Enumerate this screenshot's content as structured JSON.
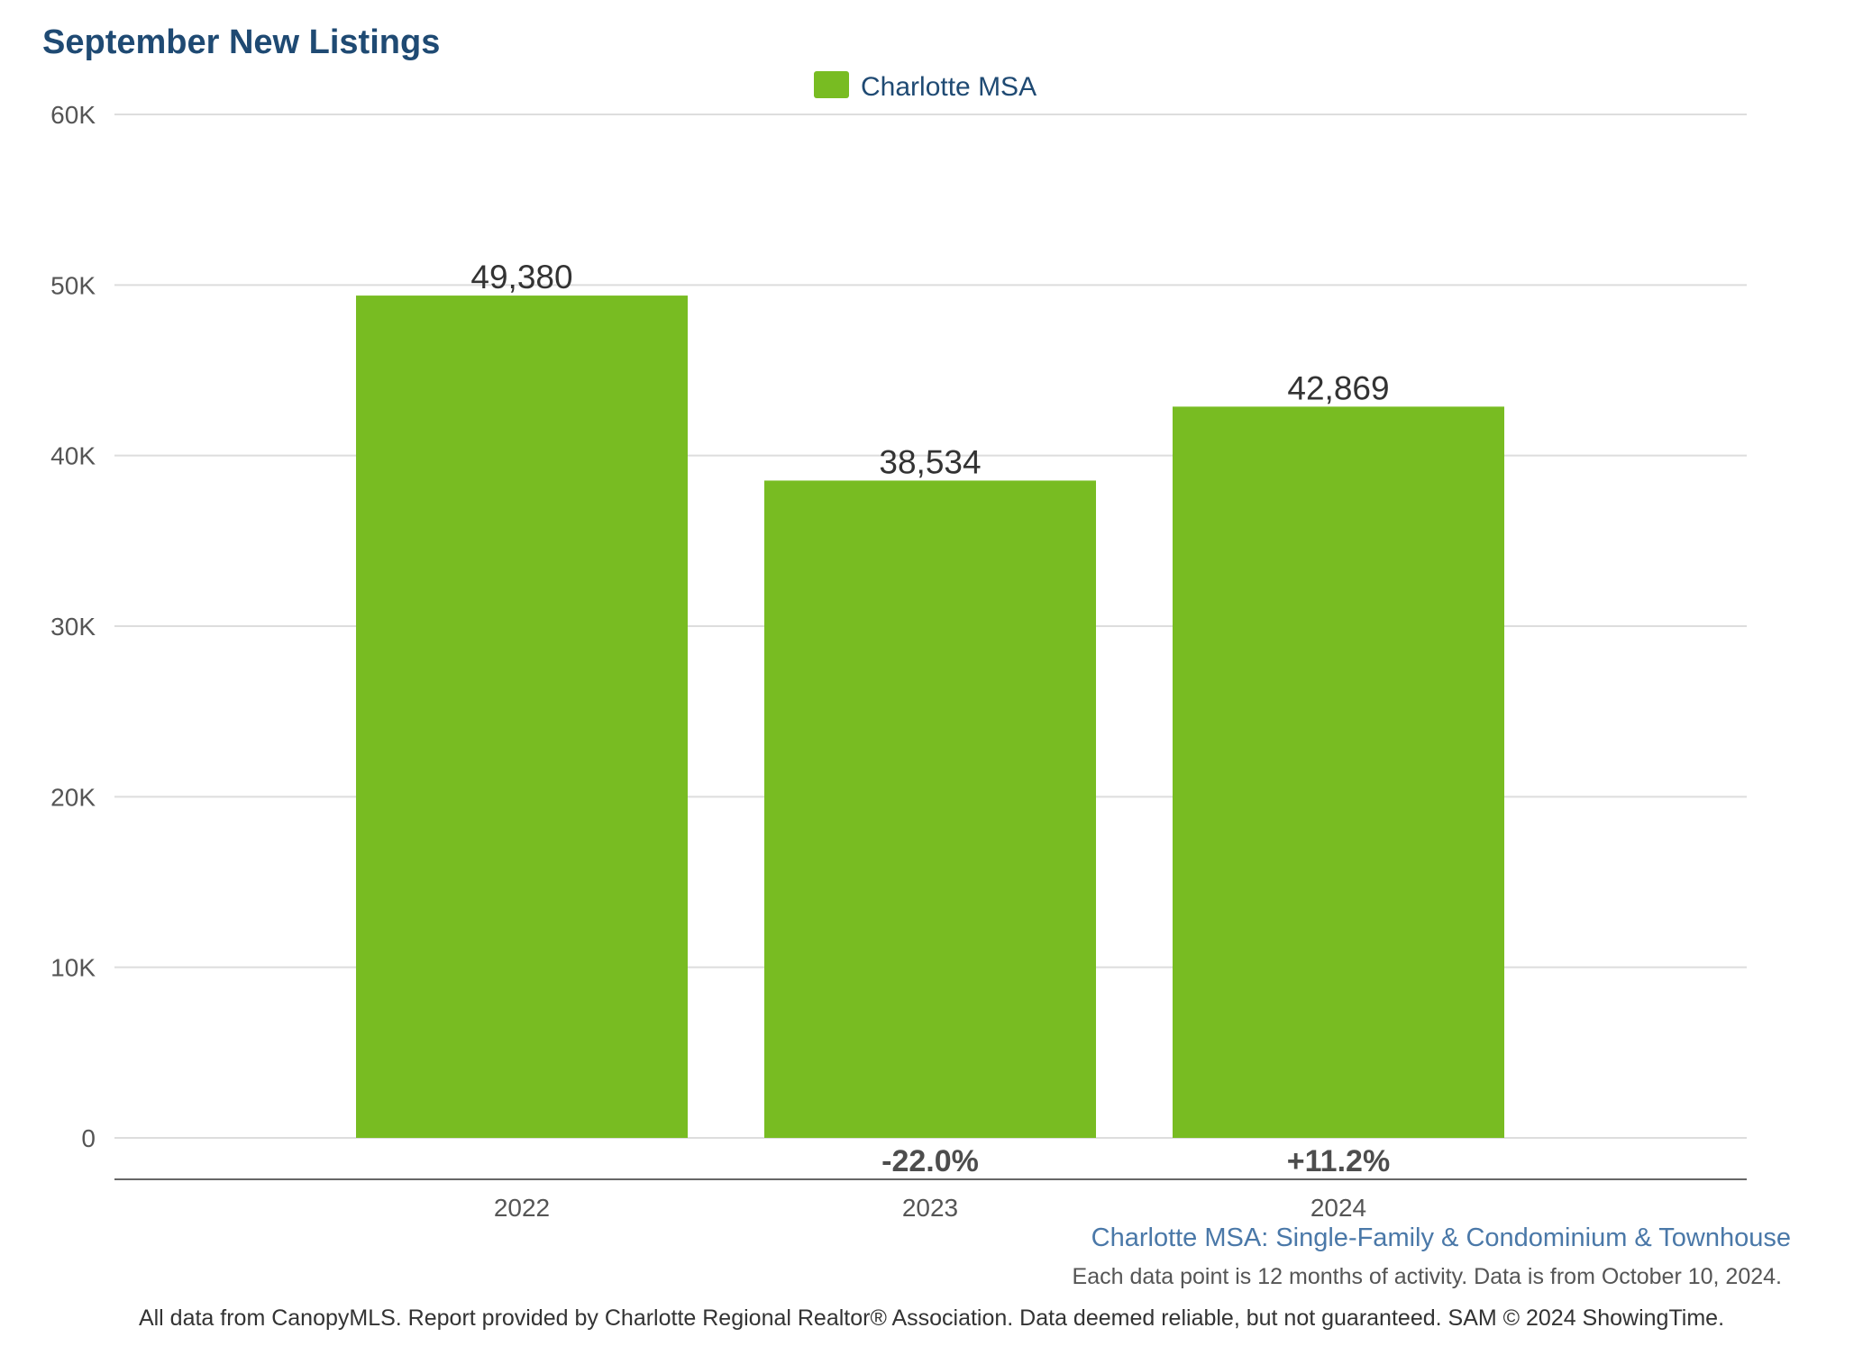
{
  "colors": {
    "bar": "#78bc22",
    "title": "#1f4a73",
    "grid": "#dddddd",
    "axis_line": "#666666",
    "tick_text": "#555555",
    "value_text": "#333333",
    "subtitle": "#4a78a8"
  },
  "chart_data": {
    "type": "bar",
    "title": "September New Listings",
    "xlabel": "",
    "ylabel": "",
    "categories": [
      "2022",
      "2023",
      "2024"
    ],
    "series": [
      {
        "name": "Charlotte MSA",
        "values": [
          49380,
          38534,
          42869
        ],
        "value_labels": [
          "49,380",
          "38,534",
          "42,869"
        ]
      }
    ],
    "change_labels": [
      "",
      "-22.0%",
      "+11.2%"
    ],
    "ylim": [
      0,
      60000
    ],
    "yticks": [
      0,
      10000,
      20000,
      30000,
      40000,
      50000,
      60000
    ],
    "ytick_labels": [
      "0",
      "10K",
      "20K",
      "30K",
      "40K",
      "50K",
      "60K"
    ],
    "grid": true,
    "legend": "top-center"
  },
  "footer": {
    "subtitle": "Charlotte MSA: Single-Family & Condominium & Townhouse",
    "data_note": "Each data point is 12 months of activity. Data is from October 10, 2024.",
    "source": "All data from CanopyMLS. Report provided by Charlotte Regional Realtor® Association. Data deemed reliable, but not guaranteed. SAM © 2024 ShowingTime."
  }
}
